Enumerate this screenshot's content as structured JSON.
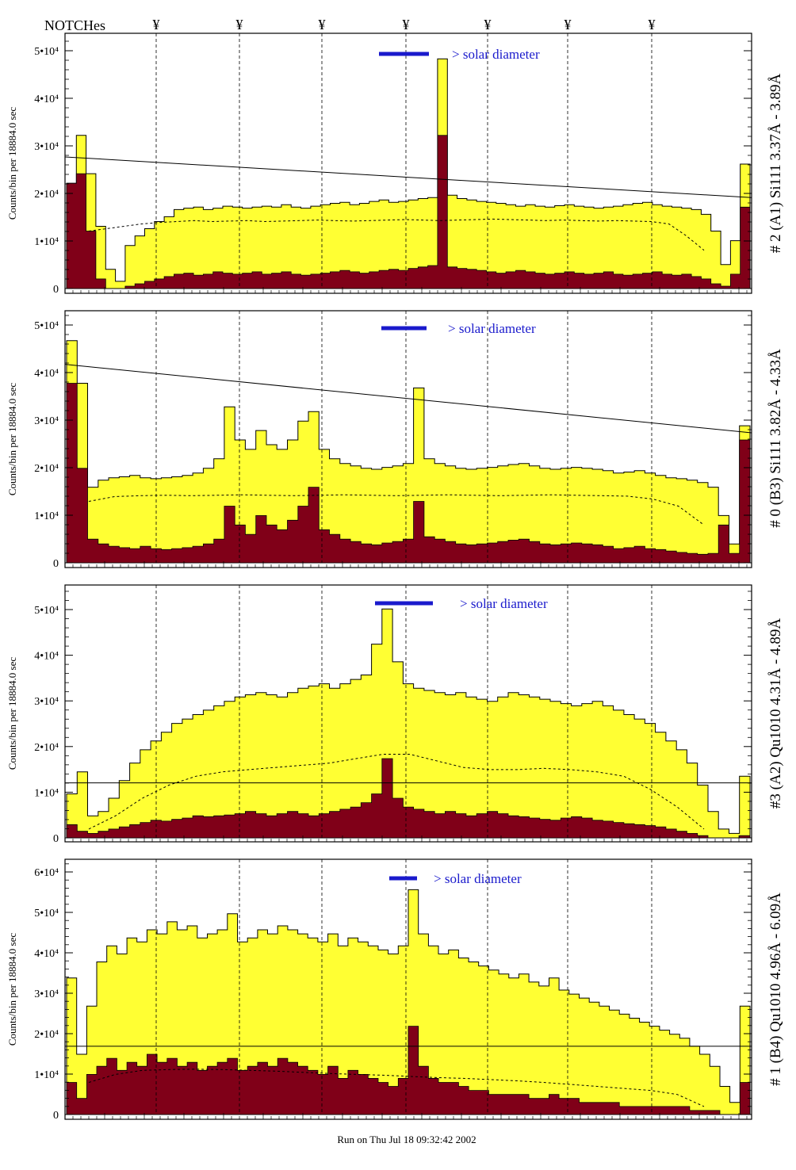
{
  "header": {
    "notches_label": "NOTCHes",
    "notch_marker": "¥",
    "run_info": "Run on Thu Jul 18 09:32:42 2002"
  },
  "colors": {
    "fill_total": "#ffff33",
    "fill_partial": "#800018",
    "annotation": "#1a1acc",
    "text": "#000000"
  },
  "chart_data": [
    {
      "type": "area",
      "panel_title": "# 2 (A1) Si111  3.37Å - 3.89Å",
      "ylabel": "Counts/bin per  18884.0 sec",
      "yticks": [
        "0",
        "1•10⁴",
        "2•10⁴",
        "3•10⁴",
        "4•10⁴",
        "5•10⁴"
      ],
      "ylim": [
        0,
        52000
      ],
      "annotation": "> solar diameter",
      "trend_line": [
        27500,
        19000
      ],
      "series": [
        {
          "values": [
            22000,
            32000,
            24000,
            13000,
            4000,
            1500,
            9000,
            11000,
            12500,
            14000,
            15000,
            16500,
            16800,
            17000,
            16500,
            16800,
            17200,
            17000,
            16800,
            17000,
            17200,
            17000,
            17500,
            17000,
            16800,
            17200,
            17500,
            17800,
            18000,
            17500,
            17800,
            18200,
            18500,
            18000,
            18200,
            18500,
            18800,
            19000,
            48000,
            19500,
            18800,
            18500,
            18200,
            18000,
            17800,
            17500,
            17200,
            17500,
            17200,
            17000,
            17300,
            17500,
            17200,
            17000,
            16800,
            17000,
            17200,
            17500,
            17800,
            18000,
            17500,
            17200,
            17000,
            16800,
            16500,
            15500,
            12000,
            5000,
            10000,
            26000
          ]
        },
        {
          "values": [
            22000,
            24000,
            12000,
            2000,
            0,
            0,
            500,
            1000,
            1500,
            2000,
            2500,
            3000,
            3200,
            2800,
            3000,
            3500,
            3200,
            3000,
            3200,
            3500,
            3000,
            3200,
            3500,
            3000,
            2800,
            3000,
            3200,
            3500,
            3800,
            3500,
            3200,
            3500,
            3800,
            4000,
            3800,
            4200,
            4500,
            4800,
            32000,
            4500,
            4200,
            4000,
            3800,
            3500,
            3200,
            3500,
            3800,
            3500,
            3200,
            3000,
            3200,
            3500,
            3200,
            3000,
            3200,
            3500,
            3000,
            2800,
            3000,
            3200,
            3500,
            3000,
            2800,
            3000,
            2500,
            2000,
            1000,
            500,
            3000,
            17000
          ]
        },
        {
          "values": [
            12000,
            12500,
            13000,
            13500,
            13800,
            14000,
            14200,
            14000,
            14100,
            14200,
            14000,
            14100,
            14200,
            14300,
            14200,
            14100,
            14200,
            14300,
            14400,
            14300,
            14200,
            14300,
            14400,
            14500,
            14400,
            14300,
            14200,
            14300,
            14200,
            14100,
            14200,
            14100,
            14000,
            13500,
            11000,
            8000
          ]
        }
      ]
    },
    {
      "type": "area",
      "panel_title": "# 0 (B3) Si111  3.82Å - 4.33Å",
      "ylabel": "Counts/bin per  18884.0 sec",
      "yticks": [
        "0",
        "1•10⁴",
        "2•10⁴",
        "3•10⁴",
        "4•10⁴",
        "5•10⁴"
      ],
      "ylim": [
        0,
        52000
      ],
      "annotation": "> solar diameter",
      "trend_line": [
        42000,
        27500
      ],
      "series": [
        {
          "values": [
            47000,
            38000,
            16000,
            17500,
            18000,
            18200,
            18500,
            18000,
            17800,
            18000,
            18200,
            18500,
            19000,
            20000,
            22000,
            33000,
            26000,
            24000,
            28000,
            25000,
            24000,
            26000,
            30000,
            32000,
            24000,
            22000,
            21000,
            20500,
            20000,
            19800,
            20200,
            20500,
            21000,
            37000,
            22000,
            21000,
            20500,
            20000,
            19800,
            20000,
            20200,
            20500,
            20800,
            21000,
            20500,
            20000,
            19800,
            20000,
            20200,
            20000,
            19800,
            19500,
            19000,
            19200,
            19500,
            19000,
            18500,
            18000,
            17800,
            17500,
            17000,
            16000,
            10000,
            4000,
            29000
          ]
        },
        {
          "values": [
            38000,
            20000,
            5000,
            4000,
            3500,
            3200,
            3000,
            3500,
            3000,
            2800,
            3000,
            3200,
            3500,
            4000,
            5000,
            12000,
            8000,
            6000,
            10000,
            8000,
            7000,
            9000,
            12000,
            16000,
            7000,
            6000,
            5000,
            4500,
            4000,
            3800,
            4200,
            4500,
            5000,
            13000,
            5500,
            5000,
            4500,
            4000,
            3800,
            4000,
            4200,
            4500,
            4800,
            5000,
            4500,
            4000,
            3800,
            4000,
            4200,
            4000,
            3800,
            3500,
            3000,
            3200,
            3500,
            3000,
            2800,
            2500,
            2200,
            2000,
            1800,
            2000,
            8000,
            2000,
            26000
          ]
        },
        {
          "values": [
            13000,
            14000,
            14200,
            14300,
            14200,
            14300,
            14400,
            14300,
            14200,
            14300,
            14400,
            14300,
            14200,
            14300,
            14400,
            14300,
            14200,
            14300,
            14400,
            14300,
            14200,
            14100,
            13500,
            12000,
            8000
          ]
        }
      ]
    },
    {
      "type": "area",
      "panel_title": "#3 (A2) Qu1010  4.31Å - 4.89Å",
      "ylabel": "Counts/bin per  18884.0 sec",
      "yticks": [
        "0",
        "1•10⁴",
        "2•10⁴",
        "3•10⁴",
        "4•10⁴",
        "5•10⁴"
      ],
      "ylim": [
        0,
        56000
      ],
      "annotation": "> solar diameter",
      "trend_line": [
        12500,
        12500
      ],
      "series": [
        {
          "values": [
            10000,
            15000,
            5000,
            6000,
            9000,
            13000,
            17000,
            20000,
            22000,
            24000,
            26000,
            27000,
            28000,
            29000,
            30000,
            31000,
            32000,
            32500,
            33000,
            32500,
            32000,
            33000,
            34000,
            34500,
            35000,
            34000,
            35000,
            36000,
            37000,
            44000,
            52000,
            40000,
            35000,
            34000,
            33500,
            33000,
            32500,
            33000,
            32000,
            31500,
            31000,
            32000,
            33000,
            32500,
            32000,
            31500,
            31000,
            30500,
            30000,
            30500,
            31000,
            30000,
            29000,
            28000,
            27000,
            26000,
            24000,
            22000,
            20000,
            17000,
            12000,
            6000,
            2000,
            1000,
            14000
          ]
        },
        {
          "values": [
            3000,
            1500,
            1000,
            1500,
            2000,
            2500,
            3000,
            3500,
            4000,
            3800,
            4200,
            4500,
            5000,
            4800,
            5000,
            5200,
            5500,
            6000,
            5500,
            5000,
            5500,
            6000,
            5500,
            5000,
            5500,
            6000,
            6500,
            7000,
            8000,
            10000,
            18000,
            9000,
            7000,
            6500,
            6000,
            5500,
            6000,
            5500,
            5000,
            5500,
            6000,
            5500,
            5000,
            4800,
            4500,
            4200,
            4000,
            4500,
            4800,
            4500,
            4000,
            3800,
            3500,
            3200,
            3000,
            2800,
            2500,
            2000,
            1500,
            1000,
            500,
            0,
            0,
            0,
            500
          ]
        },
        {
          "values": [
            2000,
            5000,
            9000,
            12000,
            14000,
            15000,
            15500,
            16000,
            16500,
            17000,
            18000,
            19000,
            19000,
            17500,
            16000,
            15500,
            15500,
            15800,
            15500,
            15000,
            14000,
            11000,
            7000,
            2000
          ]
        }
      ]
    },
    {
      "type": "area",
      "panel_title": "# 1 (B4) Qu1010 4.96Å - 6.09Å",
      "ylabel": "Counts/bin per  18884.0 sec",
      "yticks": [
        "0",
        "1•10⁴",
        "2•10⁴",
        "3•10⁴",
        "4•10⁴",
        "5•10⁴",
        "6•10⁴"
      ],
      "ylim": [
        0,
        62000
      ],
      "annotation": "> solar diameter",
      "trend_line": [
        17000,
        17000
      ],
      "series": [
        {
          "values": [
            34000,
            15000,
            27000,
            38000,
            42000,
            40000,
            44000,
            43000,
            46000,
            45000,
            48000,
            46000,
            47000,
            44000,
            45000,
            46000,
            50000,
            43000,
            44000,
            46000,
            45000,
            47000,
            46000,
            45000,
            44000,
            43000,
            45000,
            42000,
            44000,
            43000,
            42000,
            41000,
            40000,
            42000,
            56000,
            45000,
            42000,
            40000,
            41000,
            39000,
            38000,
            37000,
            36000,
            35000,
            34000,
            35000,
            33000,
            32000,
            34000,
            31000,
            30000,
            29000,
            28000,
            27000,
            26000,
            25000,
            24000,
            23000,
            22000,
            21000,
            20000,
            19000,
            17000,
            15000,
            12000,
            7000,
            3000,
            27000
          ]
        },
        {
          "values": [
            8000,
            4000,
            10000,
            12000,
            14000,
            11000,
            13000,
            12000,
            15000,
            13000,
            14000,
            12000,
            13000,
            11000,
            12000,
            13000,
            14000,
            11000,
            12000,
            13000,
            12000,
            14000,
            13000,
            12000,
            11000,
            10000,
            12000,
            9000,
            11000,
            10000,
            9000,
            8000,
            7000,
            9000,
            22000,
            12000,
            9000,
            8000,
            8000,
            7000,
            6000,
            6000,
            5000,
            5000,
            5000,
            5000,
            4000,
            4000,
            5000,
            4000,
            4000,
            3000,
            3000,
            3000,
            3000,
            2000,
            2000,
            2000,
            2000,
            2000,
            2000,
            2000,
            1000,
            1000,
            1000,
            0,
            0,
            8000
          ]
        },
        {
          "values": [
            8000,
            10000,
            11000,
            11200,
            11300,
            11200,
            11000,
            10800,
            10500,
            10200,
            10000,
            9800,
            9500,
            9200,
            9000,
            8700,
            8400,
            8000,
            7500,
            7000,
            6500,
            6000,
            5000,
            2000
          ]
        }
      ]
    }
  ]
}
